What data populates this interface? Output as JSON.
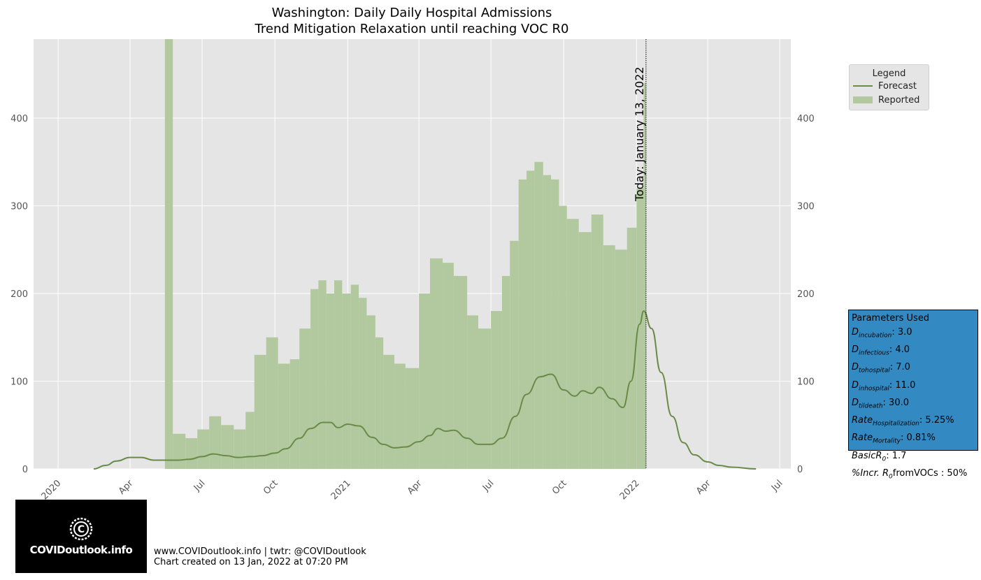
{
  "chart_data": {
    "type": "bar",
    "title": "Washington: Daily Daily Hospital Admissions",
    "subtitle": "Trend Mitigation Relaxation until reaching VOC R0",
    "xlabel": "",
    "ylabel": "",
    "x_range": [
      "2019-12-01",
      "2022-07-15"
    ],
    "ylim": [
      0,
      490
    ],
    "grid": true,
    "legend_position": "outside-right",
    "x_ticks": [
      {
        "date": "2020-01-01",
        "label": "2020"
      },
      {
        "date": "2020-04-01",
        "label": "Apr"
      },
      {
        "date": "2020-07-01",
        "label": "Jul"
      },
      {
        "date": "2020-10-01",
        "label": "Oct"
      },
      {
        "date": "2021-01-01",
        "label": "2021"
      },
      {
        "date": "2021-04-01",
        "label": "Apr"
      },
      {
        "date": "2021-07-01",
        "label": "Jul"
      },
      {
        "date": "2021-10-01",
        "label": "Oct"
      },
      {
        "date": "2022-01-01",
        "label": "2022"
      },
      {
        "date": "2022-04-01",
        "label": "Apr"
      },
      {
        "date": "2022-07-01",
        "label": "Jul"
      }
    ],
    "y_ticks": [
      0,
      100,
      200,
      300,
      400
    ],
    "today_marker": {
      "date": "2022-01-13",
      "label": "Today: January 13, 2022"
    },
    "series": [
      {
        "name": "Reported",
        "kind": "bar",
        "color": "#b2c99f",
        "points": [
          [
            "2020-05-15",
            490
          ],
          [
            "2020-05-25",
            40
          ],
          [
            "2020-06-10",
            35
          ],
          [
            "2020-06-25",
            45
          ],
          [
            "2020-07-10",
            60
          ],
          [
            "2020-07-25",
            50
          ],
          [
            "2020-08-10",
            45
          ],
          [
            "2020-08-25",
            65
          ],
          [
            "2020-09-05",
            130
          ],
          [
            "2020-09-20",
            150
          ],
          [
            "2020-10-05",
            120
          ],
          [
            "2020-10-20",
            125
          ],
          [
            "2020-11-01",
            160
          ],
          [
            "2020-11-15",
            205
          ],
          [
            "2020-11-25",
            215
          ],
          [
            "2020-12-05",
            200
          ],
          [
            "2020-12-15",
            215
          ],
          [
            "2020-12-25",
            200
          ],
          [
            "2021-01-05",
            210
          ],
          [
            "2021-01-15",
            195
          ],
          [
            "2021-01-25",
            175
          ],
          [
            "2021-02-05",
            150
          ],
          [
            "2021-02-15",
            130
          ],
          [
            "2021-03-01",
            120
          ],
          [
            "2021-03-15",
            115
          ],
          [
            "2021-04-01",
            200
          ],
          [
            "2021-04-15",
            240
          ],
          [
            "2021-05-01",
            235
          ],
          [
            "2021-05-15",
            220
          ],
          [
            "2021-06-01",
            175
          ],
          [
            "2021-06-15",
            160
          ],
          [
            "2021-07-01",
            180
          ],
          [
            "2021-07-15",
            220
          ],
          [
            "2021-07-25",
            260
          ],
          [
            "2021-08-05",
            330
          ],
          [
            "2021-08-15",
            340
          ],
          [
            "2021-08-25",
            350
          ],
          [
            "2021-09-05",
            335
          ],
          [
            "2021-09-15",
            330
          ],
          [
            "2021-09-25",
            300
          ],
          [
            "2021-10-05",
            285
          ],
          [
            "2021-10-20",
            270
          ],
          [
            "2021-11-05",
            290
          ],
          [
            "2021-11-20",
            255
          ],
          [
            "2021-12-05",
            250
          ],
          [
            "2021-12-20",
            275
          ],
          [
            "2022-01-01",
            320
          ],
          [
            "2022-01-10",
            440
          ]
        ]
      },
      {
        "name": "Forecast",
        "kind": "line",
        "color": "#6a8b47",
        "points": [
          [
            "2020-02-15",
            0
          ],
          [
            "2020-03-01",
            4
          ],
          [
            "2020-03-15",
            9
          ],
          [
            "2020-04-01",
            13
          ],
          [
            "2020-04-15",
            13
          ],
          [
            "2020-05-01",
            10
          ],
          [
            "2020-05-15",
            10
          ],
          [
            "2020-06-01",
            10
          ],
          [
            "2020-06-15",
            11
          ],
          [
            "2020-07-01",
            14
          ],
          [
            "2020-07-15",
            17
          ],
          [
            "2020-08-01",
            15
          ],
          [
            "2020-08-15",
            13
          ],
          [
            "2020-09-01",
            14
          ],
          [
            "2020-09-15",
            15
          ],
          [
            "2020-10-01",
            18
          ],
          [
            "2020-10-15",
            23
          ],
          [
            "2020-11-01",
            35
          ],
          [
            "2020-11-15",
            46
          ],
          [
            "2020-12-01",
            53
          ],
          [
            "2020-12-10",
            53
          ],
          [
            "2020-12-20",
            47
          ],
          [
            "2021-01-01",
            51
          ],
          [
            "2021-01-15",
            49
          ],
          [
            "2021-02-01",
            36
          ],
          [
            "2021-02-15",
            28
          ],
          [
            "2021-03-01",
            24
          ],
          [
            "2021-03-15",
            25
          ],
          [
            "2021-04-01",
            31
          ],
          [
            "2021-04-15",
            38
          ],
          [
            "2021-04-25",
            46
          ],
          [
            "2021-05-05",
            43
          ],
          [
            "2021-05-15",
            44
          ],
          [
            "2021-06-01",
            35
          ],
          [
            "2021-06-15",
            28
          ],
          [
            "2021-07-01",
            28
          ],
          [
            "2021-07-15",
            35
          ],
          [
            "2021-08-01",
            60
          ],
          [
            "2021-08-15",
            85
          ],
          [
            "2021-09-01",
            105
          ],
          [
            "2021-09-15",
            108
          ],
          [
            "2021-10-01",
            90
          ],
          [
            "2021-10-15",
            83
          ],
          [
            "2021-10-25",
            89
          ],
          [
            "2021-11-05",
            86
          ],
          [
            "2021-11-15",
            93
          ],
          [
            "2021-12-01",
            80
          ],
          [
            "2021-12-15",
            70
          ],
          [
            "2021-12-25",
            100
          ],
          [
            "2022-01-05",
            165
          ],
          [
            "2022-01-10",
            180
          ],
          [
            "2022-01-20",
            160
          ],
          [
            "2022-02-01",
            110
          ],
          [
            "2022-02-15",
            60
          ],
          [
            "2022-03-01",
            30
          ],
          [
            "2022-03-15",
            16
          ],
          [
            "2022-04-01",
            8
          ],
          [
            "2022-04-15",
            4
          ],
          [
            "2022-05-01",
            2
          ],
          [
            "2022-06-01",
            0
          ]
        ]
      }
    ],
    "legend": {
      "title": "Legend",
      "items": [
        "Forecast",
        "Reported"
      ]
    }
  },
  "params": {
    "title": "Parameters Used",
    "rows": [
      {
        "sym": "D",
        "sub": "incubation",
        "val": ": 3.0"
      },
      {
        "sym": "D",
        "sub": "infectious",
        "val": ": 4.0"
      },
      {
        "sym": "D",
        "sub": "tohospital",
        "val": ": 7.0"
      },
      {
        "sym": "D",
        "sub": "inhospital",
        "val": ": 11.0"
      },
      {
        "sym": "D",
        "sub": "tildeath",
        "val": ": 30.0"
      },
      {
        "sym": "Rate",
        "sub": "Hospitalization",
        "val": ": 5.25%"
      },
      {
        "sym": "Rate",
        "sub": "Mortality",
        "val": ": 0.81%"
      },
      {
        "sym": "BasicR",
        "sub": "0",
        "val": ": 1.7"
      },
      {
        "sym": "%Incr. R",
        "sub": "0",
        "val": "fromVOCs : 50%"
      }
    ]
  },
  "logo": {
    "text": "COVIDoutlook.info"
  },
  "footer": {
    "line1": "www.COVIDoutlook.info | twtr: @COVIDoutlook",
    "line2": "Chart created on 13 Jan, 2022 at 07:20 PM"
  }
}
